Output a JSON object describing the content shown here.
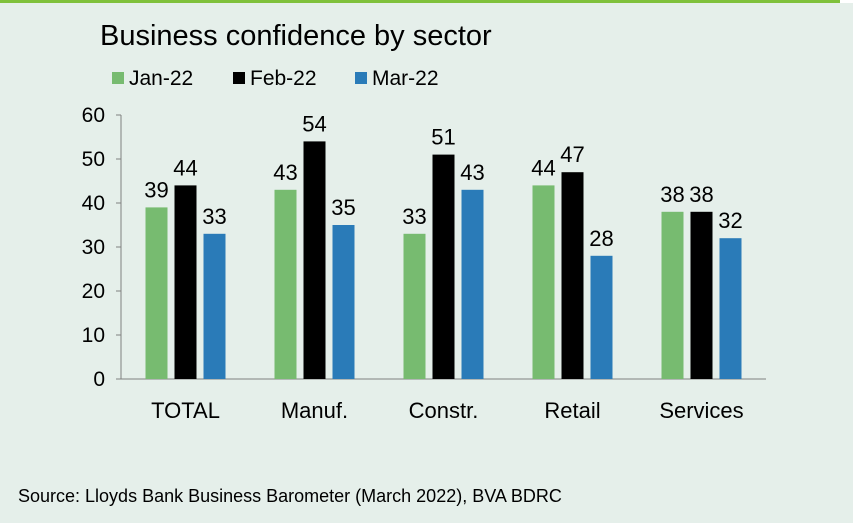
{
  "chart_data": {
    "type": "bar",
    "title": "Business confidence by sector",
    "categories": [
      "TOTAL",
      "Manuf.",
      "Constr.",
      "Retail",
      "Services"
    ],
    "series": [
      {
        "name": "Jan-22",
        "color": "#77bb70",
        "values": [
          39,
          43,
          33,
          44,
          38
        ]
      },
      {
        "name": "Feb-22",
        "color": "#000000",
        "values": [
          44,
          54,
          51,
          47,
          38
        ]
      },
      {
        "name": "Mar-22",
        "color": "#2a7bb8",
        "values": [
          33,
          35,
          43,
          28,
          32
        ]
      }
    ],
    "ylim": [
      0,
      60
    ],
    "yticks": [
      0,
      10,
      20,
      30,
      40,
      50,
      60
    ],
    "xlabel": "",
    "ylabel": "",
    "legend": "top",
    "grid": false,
    "source": "Source: Lloyds Bank Business Barometer (March 2022), BVA BDRC"
  }
}
